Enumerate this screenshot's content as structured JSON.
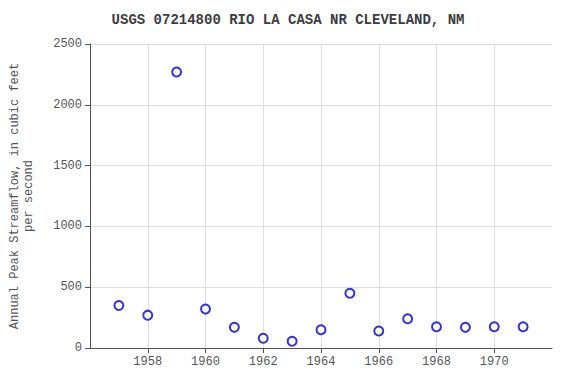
{
  "chart_data": {
    "type": "scatter",
    "title": "USGS 07214800 RIO LA CASA NR CLEVELAND, NM",
    "ylabel": "Annual Peak Streamflow, in cubic feet\nper second",
    "x": [
      1957,
      1958,
      1959,
      1960,
      1961,
      1962,
      1963,
      1964,
      1965,
      1966,
      1967,
      1968,
      1969,
      1970,
      1971
    ],
    "values": [
      350,
      270,
      2270,
      320,
      170,
      80,
      55,
      150,
      450,
      140,
      240,
      175,
      170,
      175,
      175
    ],
    "color": "#0000cc",
    "marker": "circle",
    "xlim": [
      1956.0,
      1972.0
    ],
    "xticks": [
      1958,
      1960,
      1962,
      1964,
      1966,
      1968,
      1970
    ],
    "ylim": [
      0,
      2500
    ],
    "yticks": [
      0,
      500,
      1000,
      1500,
      2000,
      2500
    ],
    "grid": true
  }
}
